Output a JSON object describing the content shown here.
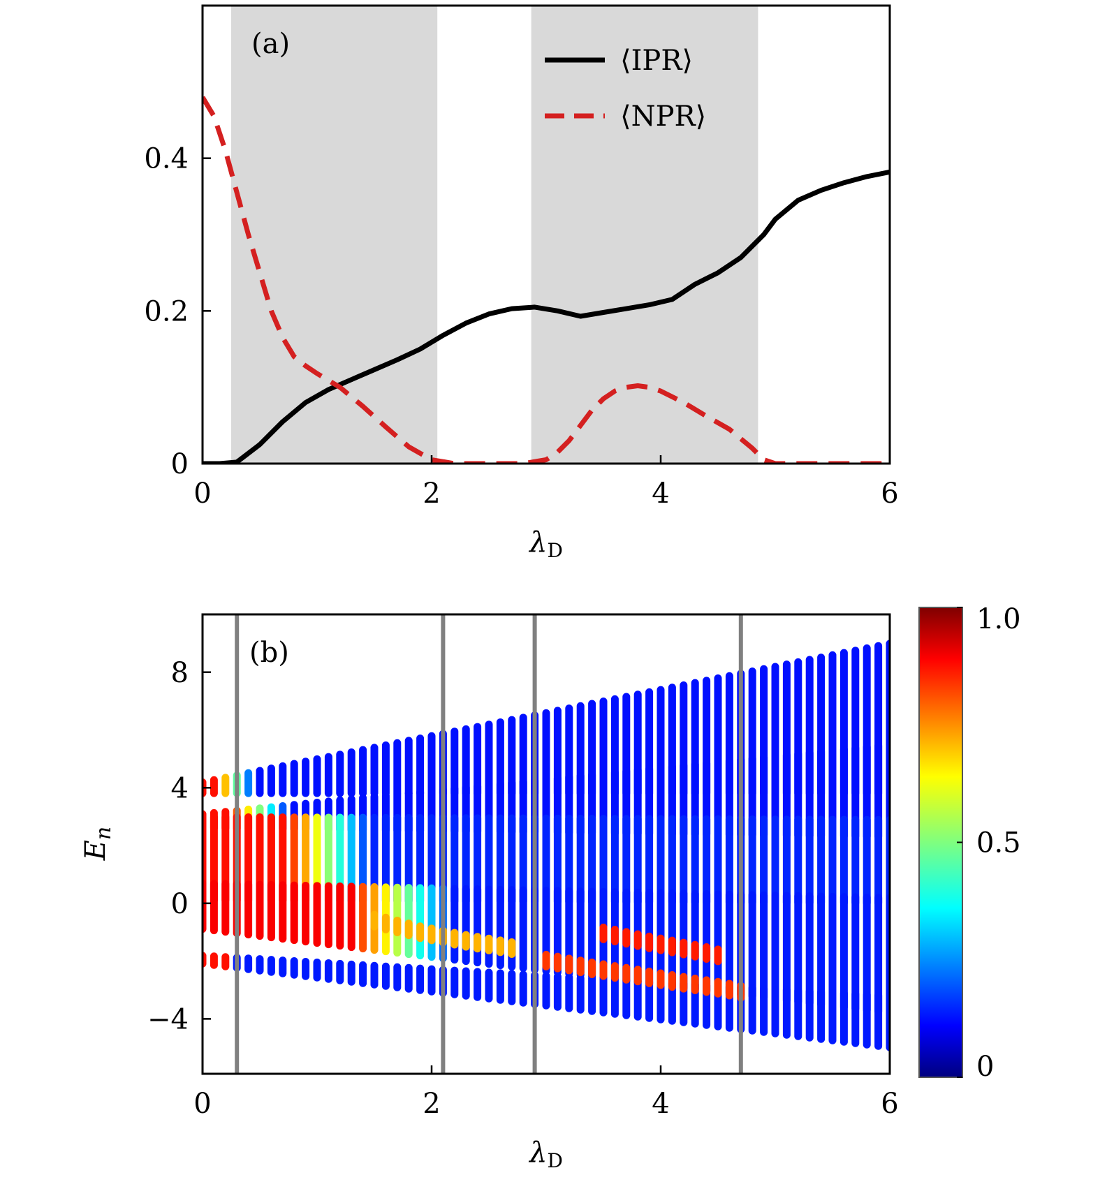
{
  "chart_data": [
    {
      "panel": "(a)",
      "type": "line",
      "xlabel_main": "λ",
      "xlabel_sub": "D",
      "ylabel": "",
      "xlim": [
        0,
        6
      ],
      "ylim": [
        0,
        0.6
      ],
      "xticks": [
        0,
        2,
        4,
        6
      ],
      "xtick_labels": [
        "0",
        "2",
        "4",
        "6"
      ],
      "yticks": [
        0,
        0.2,
        0.4
      ],
      "ytick_labels": [
        "0",
        "0.2",
        "0.4"
      ],
      "grid": false,
      "legend_position": "top-right",
      "shaded_regions": [
        [
          0.25,
          2.05
        ],
        [
          2.87,
          4.85
        ]
      ],
      "shade_color": "#d9d9d9",
      "series": [
        {
          "name": "⟨IPR⟩",
          "style": "solid",
          "color": "#000000",
          "x": [
            0,
            0.15,
            0.3,
            0.5,
            0.7,
            0.9,
            1.1,
            1.3,
            1.5,
            1.7,
            1.9,
            2.1,
            2.3,
            2.5,
            2.7,
            2.9,
            3.1,
            3.3,
            3.5,
            3.7,
            3.9,
            4.1,
            4.3,
            4.5,
            4.7,
            4.8,
            4.9,
            5.0,
            5.2,
            5.4,
            5.6,
            5.8,
            6.0
          ],
          "y": [
            0,
            0,
            0.002,
            0.025,
            0.055,
            0.08,
            0.097,
            0.11,
            0.123,
            0.136,
            0.15,
            0.168,
            0.184,
            0.196,
            0.203,
            0.205,
            0.2,
            0.193,
            0.198,
            0.203,
            0.208,
            0.215,
            0.235,
            0.25,
            0.27,
            0.285,
            0.3,
            0.32,
            0.345,
            0.358,
            0.368,
            0.376,
            0.382
          ]
        },
        {
          "name": "⟨NPR⟩",
          "style": "dashed",
          "color": "#d42020",
          "x": [
            0,
            0.1,
            0.2,
            0.3,
            0.4,
            0.5,
            0.6,
            0.7,
            0.8,
            0.9,
            1.0,
            1.2,
            1.4,
            1.6,
            1.8,
            2.0,
            2.2,
            2.5,
            2.8,
            3.0,
            3.1,
            3.2,
            3.3,
            3.4,
            3.5,
            3.6,
            3.7,
            3.8,
            3.9,
            4.0,
            4.2,
            4.4,
            4.6,
            4.8,
            4.9,
            5.0,
            5.5,
            6.0
          ],
          "y": [
            0.48,
            0.455,
            0.41,
            0.355,
            0.3,
            0.25,
            0.2,
            0.165,
            0.14,
            0.128,
            0.118,
            0.1,
            0.075,
            0.048,
            0.022,
            0.005,
            0,
            0,
            0,
            0.005,
            0.015,
            0.03,
            0.05,
            0.07,
            0.085,
            0.095,
            0.1,
            0.102,
            0.1,
            0.095,
            0.08,
            0.062,
            0.045,
            0.02,
            0.005,
            0,
            0,
            0
          ]
        }
      ]
    },
    {
      "panel": "(b)",
      "type": "scatter",
      "xlabel_main": "λ",
      "xlabel_sub": "D",
      "ylabel_main": "E",
      "ylabel_sub": "n",
      "xlim": [
        0,
        6
      ],
      "ylim": [
        -5.9,
        10
      ],
      "xticks": [
        0,
        2,
        4,
        6
      ],
      "xtick_labels": [
        "0",
        "2",
        "4",
        "6"
      ],
      "yticks": [
        -4,
        0,
        4,
        8
      ],
      "ytick_labels": [
        "−4",
        "0",
        "4",
        "8"
      ],
      "grid": false,
      "vertical_lines": [
        0.3,
        2.1,
        2.9,
        4.7
      ],
      "vertical_line_color": "#808080",
      "lambda_step": 0.1,
      "bands": [
        {
          "lo": [
            3.8,
            3.8
          ],
          "hi": [
            4.2,
            9.0
          ],
          "ramp": [
            0.12,
            0.45
          ],
          "c_hi": 0.86,
          "c_lo": 0.14
        },
        {
          "lo": [
            2.6,
            2.3
          ],
          "hi": [
            3.1,
            5.5
          ],
          "ramp": [
            0.25,
            0.75
          ],
          "c_hi": 0.86,
          "c_lo": 0.14
        },
        {
          "lo": [
            0.1,
            0.0
          ],
          "hi": [
            3.0,
            2.9
          ],
          "ramp": [
            0.75,
            1.45
          ],
          "c_hi": 0.86,
          "c_lo": 0.16
        },
        {
          "lo": [
            -0.9,
            -3.8
          ],
          "hi": [
            0.7,
            0.2
          ],
          "ramp": [
            1.3,
            2.2
          ],
          "c_hi": 0.88,
          "c_lo": 0.15
        },
        {
          "lo": [
            -2.1,
            -5.0
          ],
          "hi": [
            -1.8,
            -3.2
          ],
          "ramp": [
            0.0,
            0.0
          ],
          "c_hi": 0.3,
          "c_lo": 0.15
        }
      ],
      "red_tracks": [
        {
          "points": [
            [
              2.95,
              -1.95
            ],
            [
              3.4,
              -2.25
            ],
            [
              3.8,
              -2.5
            ],
            [
              4.2,
              -2.75
            ],
            [
              4.55,
              -2.95
            ],
            [
              4.75,
              -3.1
            ]
          ],
          "value": 0.82
        },
        {
          "points": [
            [
              3.45,
              -1.0
            ],
            [
              3.9,
              -1.35
            ],
            [
              4.25,
              -1.6
            ],
            [
              4.5,
              -1.8
            ]
          ],
          "value": 0.85
        },
        {
          "points": [
            [
              1.5,
              -0.6
            ],
            [
              1.9,
              -1.0
            ],
            [
              2.3,
              -1.3
            ],
            [
              2.7,
              -1.55
            ]
          ],
          "value": 0.7
        }
      ],
      "colorbar": {
        "min": 0,
        "max": 1.0,
        "tick_values": [
          0,
          0.5,
          1.0
        ],
        "tick_labels": [
          "0",
          "0.5",
          "1.0"
        ],
        "colormap": "jet"
      }
    }
  ]
}
